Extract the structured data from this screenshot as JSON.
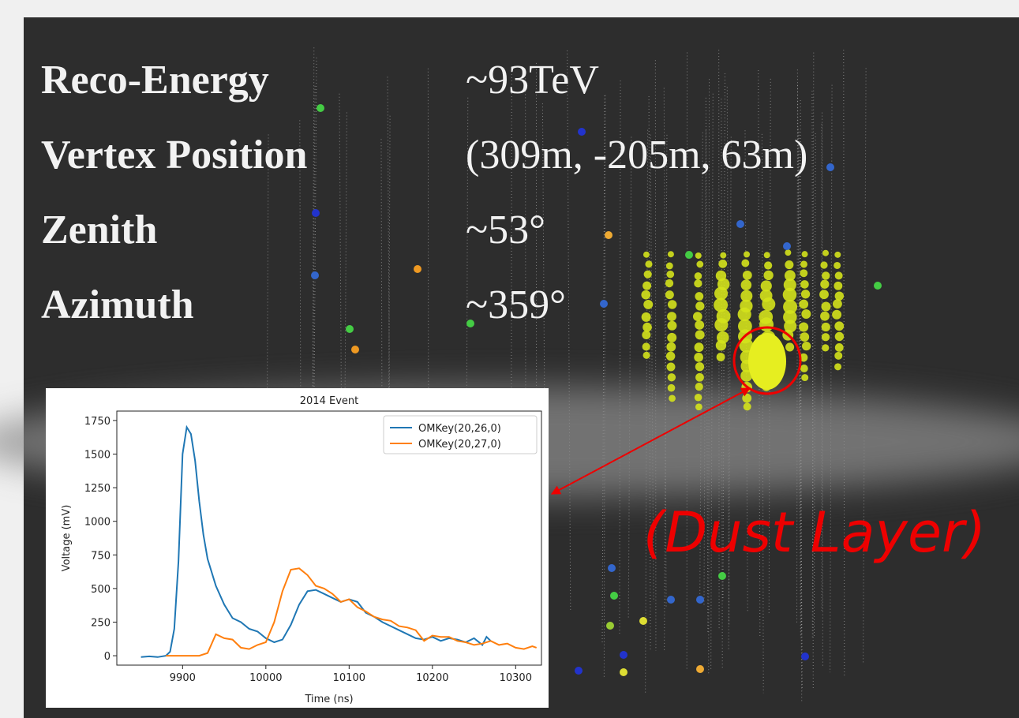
{
  "info": {
    "rows": [
      {
        "label": "Reco-Energy",
        "value": "~93TeV"
      },
      {
        "label": "Vertex Position",
        "value": "(309m, -205m, 63m)"
      },
      {
        "label": "Zenith",
        "value": "~53°"
      },
      {
        "label": "Azimuth",
        "value": "~359°"
      }
    ]
  },
  "annotation": "(Dust Layer)",
  "chart_data": {
    "type": "line",
    "title": "2014 Event",
    "x_label": "Time (ns)",
    "y_label": "Voltage (mV)",
    "xlim": [
      9821,
      10331
    ],
    "xticks": [
      9900,
      10000,
      10100,
      10200,
      10300
    ],
    "ylim": [
      -70,
      1820
    ],
    "yticks": [
      0,
      250,
      500,
      750,
      1000,
      1250,
      1500,
      1750
    ],
    "legend": "upper right",
    "series": [
      {
        "name": "OMKey(20,26,0)",
        "color": "#1f77b4",
        "x": [
          9850,
          9860,
          9870,
          9880,
          9885,
          9890,
          9895,
          9900,
          9905,
          9910,
          9915,
          9920,
          9925,
          9930,
          9940,
          9950,
          9960,
          9970,
          9980,
          9990,
          10000,
          10010,
          10020,
          10030,
          10040,
          10050,
          10060,
          10070,
          10080,
          10090,
          10100,
          10110,
          10120,
          10130,
          10140,
          10150,
          10160,
          10170,
          10180,
          10190,
          10200,
          10210,
          10220,
          10230,
          10240,
          10250,
          10260,
          10265,
          10270
        ],
        "values": [
          -10,
          -5,
          -10,
          0,
          30,
          200,
          700,
          1500,
          1700,
          1650,
          1450,
          1150,
          900,
          720,
          520,
          380,
          280,
          250,
          200,
          180,
          130,
          100,
          120,
          230,
          380,
          480,
          490,
          460,
          430,
          400,
          420,
          400,
          320,
          290,
          250,
          220,
          190,
          160,
          130,
          120,
          140,
          110,
          130,
          120,
          100,
          130,
          80,
          140,
          110
        ]
      },
      {
        "name": "OMKey(20,27,0)",
        "color": "#ff7f0e",
        "x": [
          9880,
          9890,
          9900,
          9910,
          9920,
          9930,
          9940,
          9950,
          9960,
          9970,
          9980,
          9990,
          10000,
          10010,
          10020,
          10030,
          10040,
          10050,
          10060,
          10070,
          10080,
          10090,
          10100,
          10110,
          10120,
          10130,
          10140,
          10150,
          10160,
          10170,
          10180,
          10190,
          10200,
          10210,
          10220,
          10230,
          10240,
          10250,
          10260,
          10270,
          10280,
          10290,
          10300,
          10310,
          10320,
          10325
        ],
        "values": [
          0,
          0,
          0,
          0,
          0,
          20,
          160,
          130,
          120,
          60,
          50,
          80,
          100,
          250,
          480,
          640,
          650,
          600,
          520,
          500,
          460,
          400,
          420,
          360,
          330,
          290,
          270,
          260,
          220,
          210,
          190,
          110,
          150,
          140,
          140,
          110,
          100,
          80,
          90,
          110,
          80,
          90,
          60,
          50,
          70,
          60
        ]
      }
    ]
  }
}
